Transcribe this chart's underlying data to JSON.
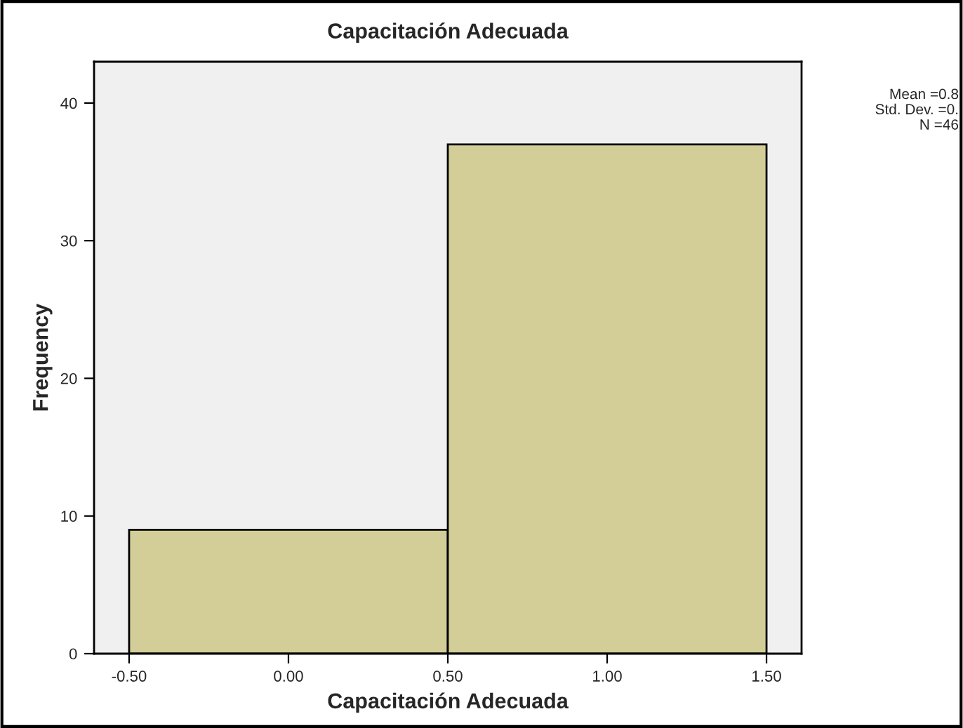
{
  "chart_data": {
    "type": "histogram",
    "title": "Capacitación Adecuada",
    "xlabel": "Capacitación Adecuada",
    "ylabel": "Frequency",
    "bins": [
      -0.5,
      0.5,
      1.5
    ],
    "values": [
      9,
      37
    ],
    "color": "#d3ce97",
    "xlim": [
      -0.61,
      1.61
    ],
    "xticks": [
      {
        "value": -0.5,
        "label": "-0.50"
      },
      {
        "value": 0,
        "label": "0.00"
      },
      {
        "value": 0.5,
        "label": "0.50"
      },
      {
        "value": 1,
        "label": "1.00"
      },
      {
        "value": 1.5,
        "label": "1.50"
      }
    ],
    "ylim": [
      0,
      43
    ],
    "yticks": [
      0,
      10,
      20,
      30,
      40
    ],
    "grid": false,
    "annotations": [
      "Mean =0.8",
      "Std. Dev. =0.",
      "N =46"
    ]
  }
}
